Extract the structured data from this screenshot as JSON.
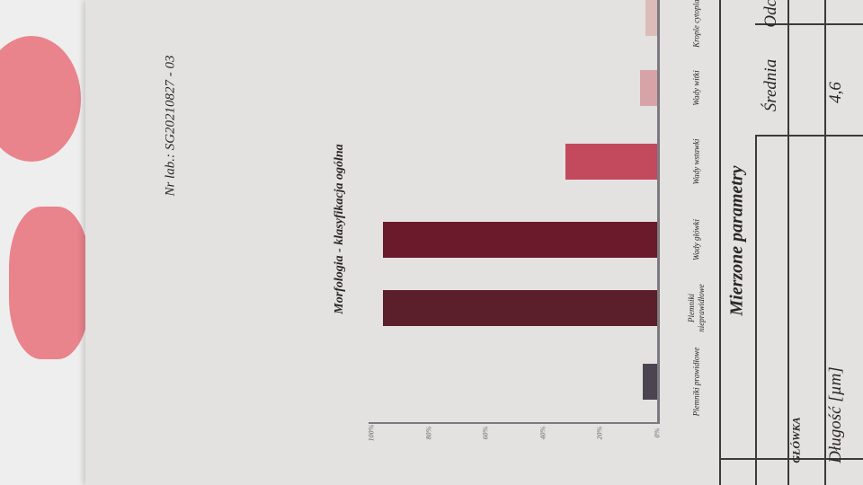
{
  "header": {
    "lab_number": "Nr lab.:  SG20210827 - 03"
  },
  "chart_data": {
    "type": "bar",
    "orientation": "vertical bars (page rotated 90°)",
    "title": "Morfologia - klasyfikacja ogólna",
    "categories": [
      "Plemniki prawidłowe",
      "Plemniki nieprawidłowe",
      "Wady główki",
      "Wady wstawki",
      "Wady witki",
      "Krople cytoplazm."
    ],
    "values": [
      5,
      96,
      96,
      32,
      6,
      4
    ],
    "colors": [
      "#4a4550",
      "#5a1f2a",
      "#6b1a2c",
      "#c24a5c",
      "#d6a4a6",
      "#dcbcb8"
    ],
    "ylim": [
      0,
      100
    ],
    "yticks": [
      "0%",
      "20%",
      "40%",
      "60%",
      "80%",
      "100%"
    ],
    "grid": false
  },
  "table": {
    "title": "Mierzone parametry",
    "headers": [
      "Średnia",
      "Odch"
    ],
    "section": "GŁÓWKA",
    "rows": [
      {
        "label": "Długość [µm]",
        "mean": "4,6"
      }
    ]
  }
}
